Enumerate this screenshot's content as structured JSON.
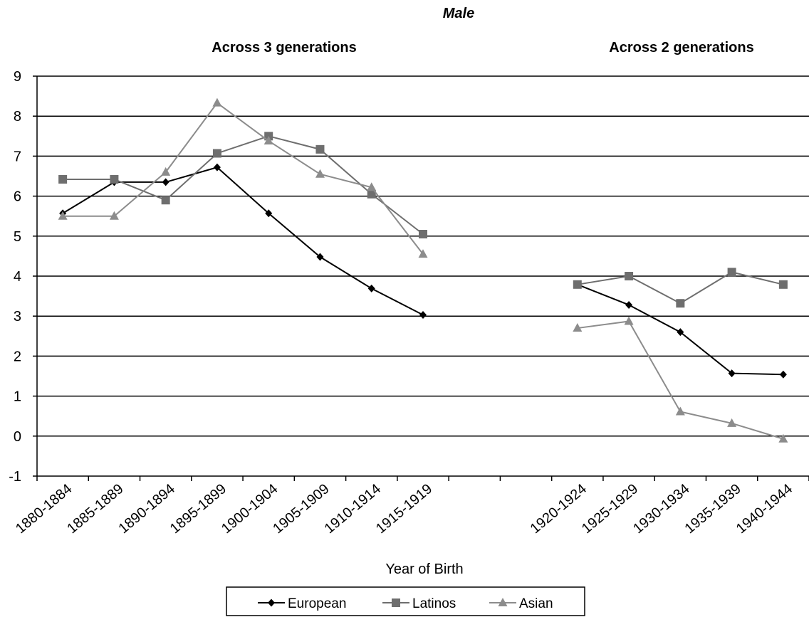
{
  "chart_data": {
    "type": "line",
    "title": "Male",
    "section_labels": [
      "Across 3 generations",
      "Across 2 generations"
    ],
    "xlabel": "Year of Birth",
    "ylabel": "",
    "ylim": [
      -1,
      9
    ],
    "yticks": [
      "-1",
      "0",
      "1",
      "2",
      "3",
      "4",
      "5",
      "6",
      "7",
      "8",
      "9"
    ],
    "grid": "horizontal",
    "legend_position": "bottom",
    "categories": [
      "1880-1884",
      "1885-1889",
      "1890-1894",
      "1895-1899",
      "1900-1904",
      "1905-1909",
      "1910-1914",
      "1915-1919",
      "",
      "",
      "1920-1924",
      "1925-1929",
      "1930-1934",
      "1935-1939",
      "1940-1944"
    ],
    "series": [
      {
        "name": "European",
        "color": "#000000",
        "marker": "diamond",
        "segments": [
          [
            5.57,
            6.35,
            6.35,
            6.72,
            5.57,
            4.48,
            3.69,
            3.03
          ],
          [
            3.79,
            3.28,
            2.6,
            1.57,
            1.54
          ]
        ]
      },
      {
        "name": "Latinos",
        "color": "#6e6e6e",
        "marker": "square",
        "segments": [
          [
            6.42,
            6.42,
            5.9,
            7.07,
            7.5,
            7.17,
            6.05,
            5.05
          ],
          [
            3.79,
            4.0,
            3.32,
            4.1,
            3.79
          ]
        ]
      },
      {
        "name": "Asian",
        "color": "#8c8c8c",
        "marker": "triangle",
        "segments": [
          [
            5.5,
            5.5,
            6.6,
            8.33,
            7.38,
            6.55,
            6.22,
            4.55
          ],
          [
            2.7,
            2.87,
            0.61,
            0.32,
            -0.07
          ]
        ]
      }
    ]
  }
}
